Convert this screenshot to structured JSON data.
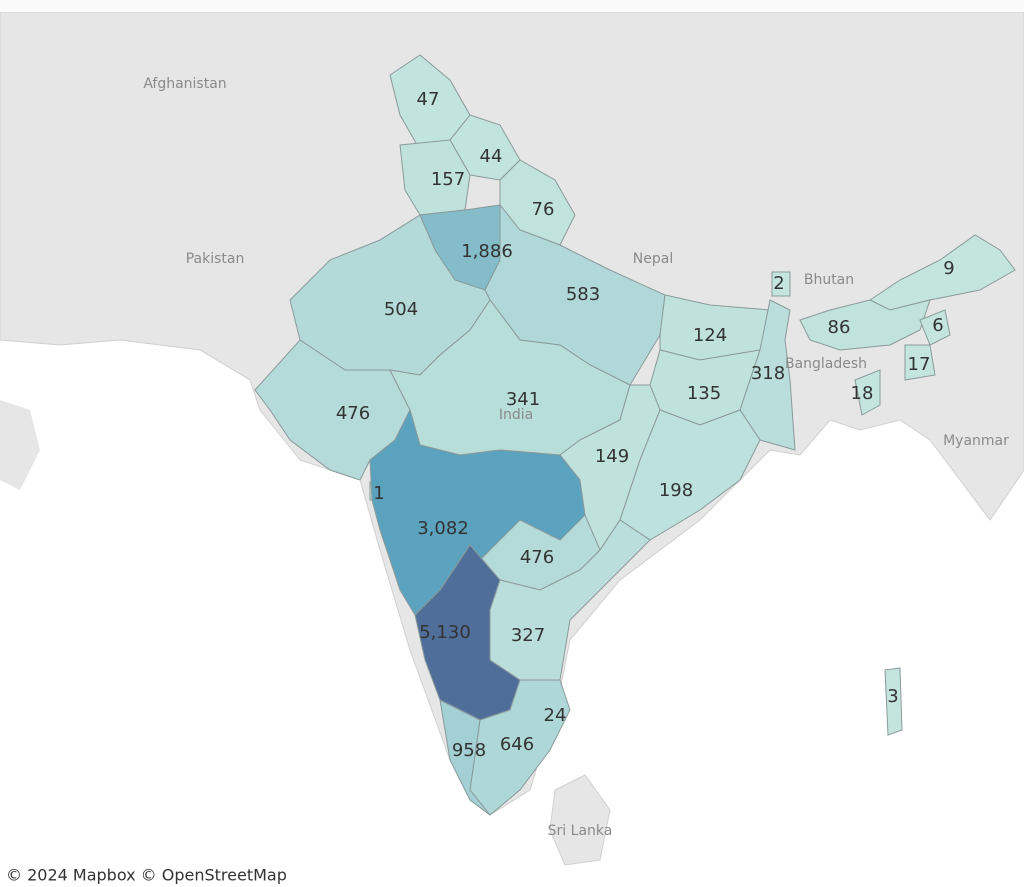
{
  "map": {
    "country_labels": [
      "Afghanistan",
      "Pakistan",
      "Nepal",
      "Bhutan",
      "Bangladesh",
      "India",
      "Myanmar",
      "Sri Lanka"
    ],
    "states": [
      47,
      44,
      157,
      76,
      {
        "value": 1886,
        "label": "1,886"
      },
      583,
      504,
      476,
      341,
      124,
      135,
      318,
      149,
      198,
      1,
      {
        "value": 3082,
        "label": "3,082"
      },
      476,
      {
        "value": 5130,
        "label": "5,130"
      },
      327,
      24,
      646,
      958,
      2,
      9,
      86,
      6,
      17,
      18,
      3
    ],
    "attribution": "© 2024 Mapbox © OpenStreetMap"
  }
}
